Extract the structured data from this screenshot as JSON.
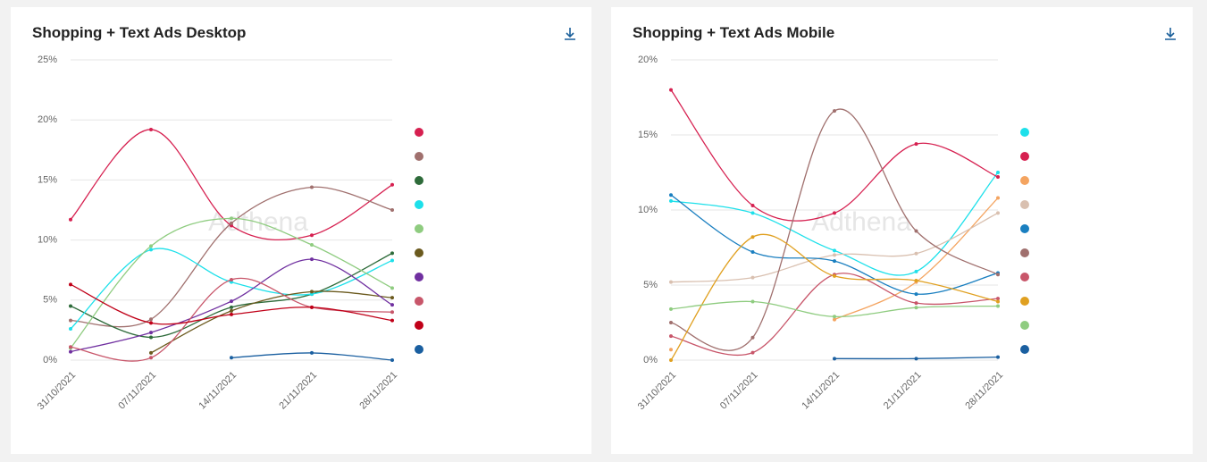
{
  "chart_data": [
    {
      "type": "line",
      "title": "Shopping + Text Ads Desktop",
      "watermark": "Adthena",
      "categories": [
        "31/10/2021",
        "07/11/2021",
        "14/11/2021",
        "21/11/2021",
        "28/11/2021"
      ],
      "ylim": [
        0,
        25
      ],
      "yticks": [
        {
          "value": 0,
          "label": "0%"
        },
        {
          "value": 5,
          "label": "5%"
        },
        {
          "value": 10,
          "label": "10%"
        },
        {
          "value": 15,
          "label": "15%"
        },
        {
          "value": 20,
          "label": "20%"
        },
        {
          "value": 25,
          "label": "25%"
        }
      ],
      "grid": true,
      "series": [
        {
          "color": "#d62050",
          "values": [
            11.7,
            19.2,
            11.2,
            10.4,
            14.6
          ]
        },
        {
          "color": "#a0706e",
          "values": [
            3.3,
            3.4,
            11.4,
            14.4,
            12.5
          ]
        },
        {
          "color": "#2e6b3a",
          "values": [
            4.5,
            1.9,
            4.4,
            5.5,
            8.9
          ]
        },
        {
          "color": "#1de0ea",
          "values": [
            2.6,
            9.2,
            6.5,
            5.5,
            8.3
          ]
        },
        {
          "color": "#8fcc80",
          "values": [
            1.0,
            9.5,
            11.8,
            9.6,
            6.0
          ]
        },
        {
          "color": "#6b5a1e",
          "values": [
            null,
            0.6,
            4.1,
            5.7,
            5.2
          ]
        },
        {
          "color": "#7030a0",
          "values": [
            0.7,
            2.3,
            4.9,
            8.4,
            4.6
          ]
        },
        {
          "color": "#c8566a",
          "values": [
            1.1,
            0.2,
            6.7,
            4.4,
            4.0
          ]
        },
        {
          "color": "#c00018",
          "values": [
            6.3,
            3.1,
            3.8,
            4.4,
            3.3
          ]
        },
        {
          "color": "#1a5fa0",
          "values": [
            null,
            null,
            0.2,
            0.6,
            0.0
          ]
        }
      ]
    },
    {
      "type": "line",
      "title": "Shopping + Text Ads Mobile",
      "watermark": "Adthena",
      "categories": [
        "31/10/2021",
        "07/11/2021",
        "14/11/2021",
        "21/11/2021",
        "28/11/2021"
      ],
      "ylim": [
        0,
        20
      ],
      "yticks": [
        {
          "value": 0,
          "label": "0%"
        },
        {
          "value": 5,
          "label": "5%"
        },
        {
          "value": 10,
          "label": "10%"
        },
        {
          "value": 15,
          "label": "15%"
        },
        {
          "value": 20,
          "label": "20%"
        }
      ],
      "grid": true,
      "series": [
        {
          "color": "#1de0ea",
          "values": [
            10.6,
            9.8,
            7.3,
            5.9,
            12.5
          ]
        },
        {
          "color": "#d62050",
          "values": [
            18.0,
            10.3,
            9.8,
            14.4,
            12.2
          ]
        },
        {
          "color": "#f4a460",
          "values": [
            0.7,
            null,
            2.7,
            5.2,
            10.8
          ]
        },
        {
          "color": "#d9c0b0",
          "values": [
            5.2,
            5.5,
            7.0,
            7.1,
            9.8
          ]
        },
        {
          "color": "#1a7fc0",
          "values": [
            11.0,
            7.2,
            6.6,
            4.4,
            5.8
          ]
        },
        {
          "color": "#a0706e",
          "values": [
            2.5,
            1.5,
            16.6,
            8.6,
            5.7
          ]
        },
        {
          "color": "#c8566a",
          "values": [
            1.6,
            0.5,
            5.7,
            3.8,
            4.1
          ]
        },
        {
          "color": "#e0a020",
          "values": [
            0.0,
            8.2,
            5.6,
            5.3,
            3.9
          ]
        },
        {
          "color": "#8fcc80",
          "values": [
            3.4,
            3.9,
            2.9,
            3.5,
            3.6
          ]
        },
        {
          "color": "#1a5fa0",
          "values": [
            null,
            null,
            0.1,
            0.1,
            0.2
          ]
        }
      ]
    }
  ]
}
